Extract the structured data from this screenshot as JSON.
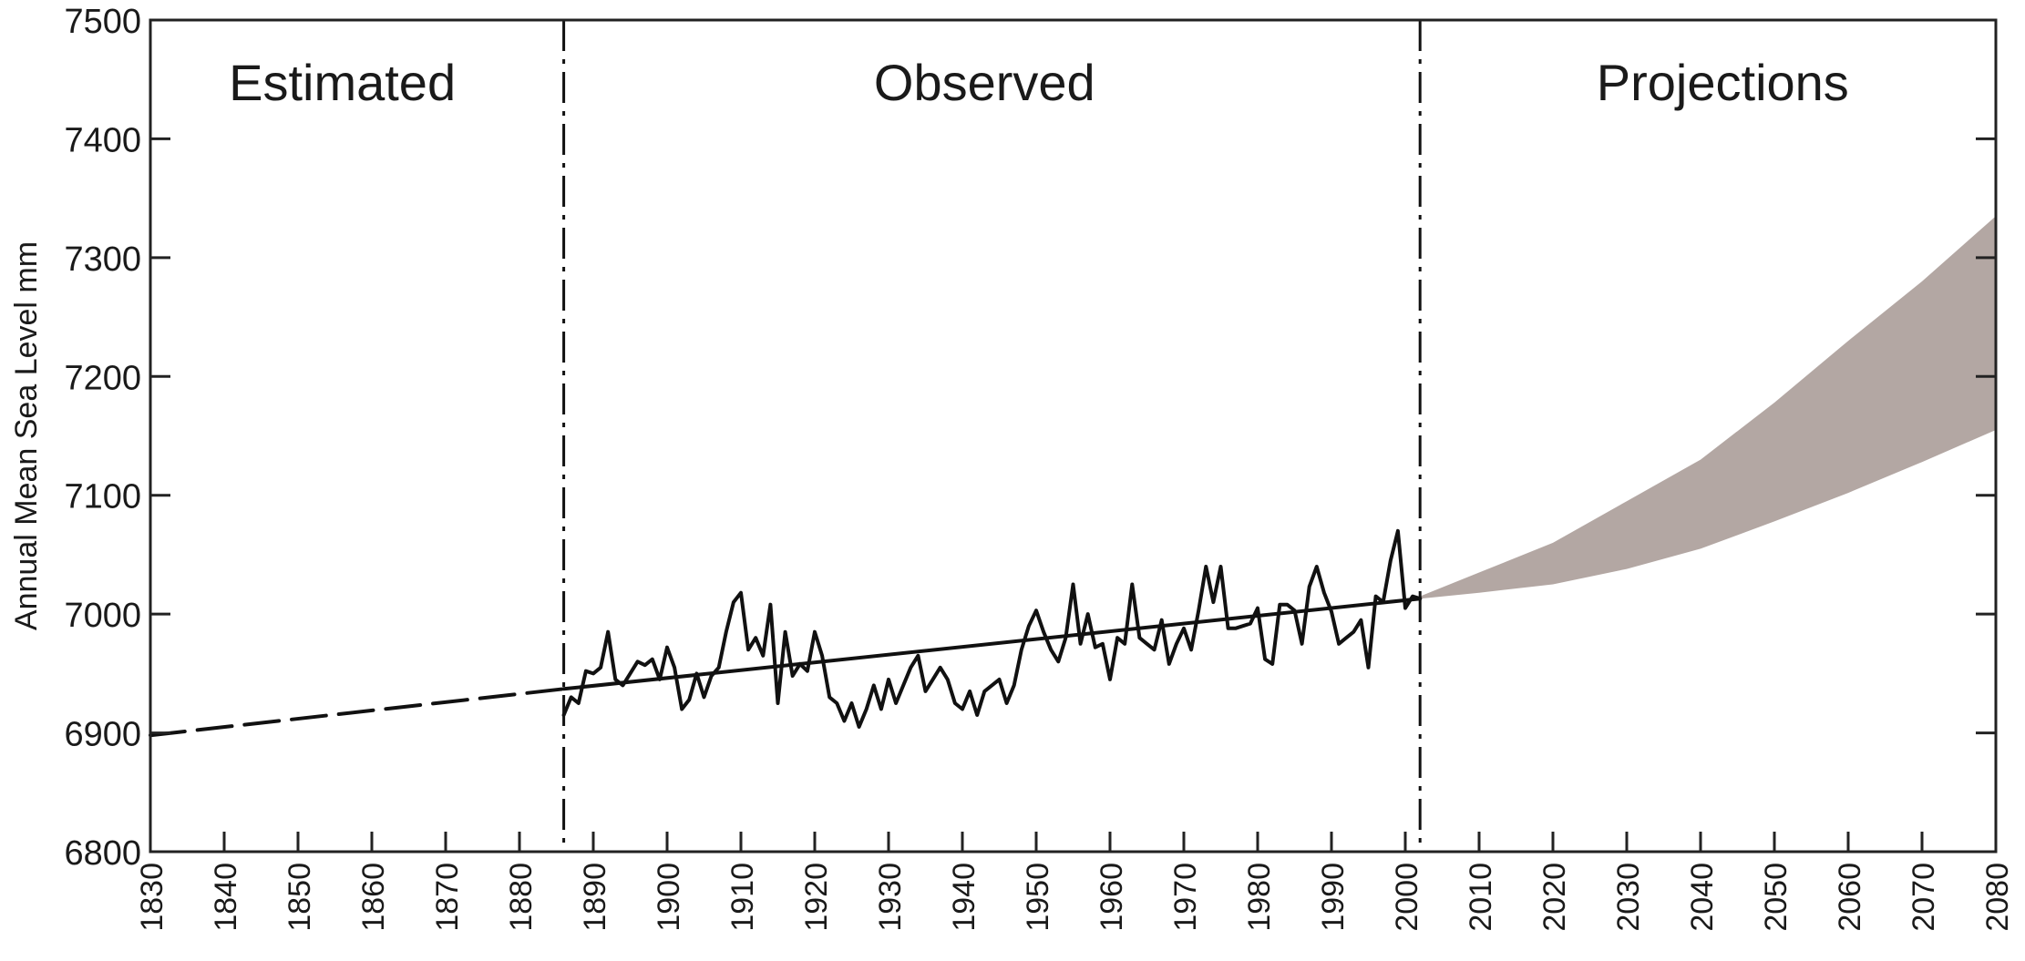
{
  "chart_data": {
    "type": "line",
    "ylabel": "Annual Mean Sea Level mm",
    "xlabel": "",
    "xlim": [
      1830,
      2080
    ],
    "ylim": [
      6800,
      7500
    ],
    "x_ticks": [
      1830,
      1840,
      1850,
      1860,
      1870,
      1880,
      1890,
      1900,
      1910,
      1920,
      1930,
      1940,
      1950,
      1960,
      1970,
      1980,
      1990,
      2000,
      2010,
      2020,
      2030,
      2040,
      2050,
      2060,
      2070,
      2080
    ],
    "y_ticks": [
      6800,
      6900,
      7000,
      7100,
      7200,
      7300,
      7400,
      7500
    ],
    "grid": false,
    "period_labels": [
      {
        "label": "Estimated",
        "x": 1856
      },
      {
        "label": "Observed",
        "x": 1943
      },
      {
        "label": "Projections",
        "x": 2043
      }
    ],
    "dividers": [
      1886,
      2002
    ],
    "colors": {
      "line": "#111111",
      "band": "#b3a7a3",
      "frame": "#222222"
    },
    "series": [
      {
        "style": "dashed",
        "x": [
          1830,
          1886
        ],
        "y": [
          6898,
          6937
        ]
      },
      {
        "style": "solid",
        "x": [
          1886,
          2002
        ],
        "y": [
          6937,
          7013
        ]
      },
      {
        "style": "solid",
        "x": [
          1886,
          1887,
          1888,
          1889,
          1890,
          1891,
          1892,
          1893,
          1894,
          1895,
          1896,
          1897,
          1898,
          1899,
          1900,
          1901,
          1902,
          1903,
          1904,
          1905,
          1906,
          1907,
          1908,
          1909,
          1910,
          1911,
          1912,
          1913,
          1914,
          1915,
          1916,
          1917,
          1918,
          1919,
          1920,
          1921,
          1922,
          1923,
          1924,
          1925,
          1926,
          1927,
          1928,
          1929,
          1930,
          1931,
          1932,
          1933,
          1934,
          1935,
          1936,
          1937,
          1938,
          1939,
          1940,
          1941,
          1942,
          1943,
          1944,
          1945,
          1946,
          1947,
          1948,
          1949,
          1950,
          1951,
          1952,
          1953,
          1954,
          1955,
          1956,
          1957,
          1958,
          1959,
          1960,
          1961,
          1962,
          1963,
          1964,
          1965,
          1966,
          1967,
          1968,
          1969,
          1970,
          1971,
          1972,
          1973,
          1974,
          1975,
          1976,
          1977,
          1978,
          1979,
          1980,
          1981,
          1982,
          1983,
          1984,
          1985,
          1986,
          1987,
          1988,
          1989,
          1990,
          1991,
          1992,
          1993,
          1994,
          1995,
          1996,
          1997,
          1998,
          1999,
          2000,
          2001,
          2002
        ],
        "y": [
          6915,
          6930,
          6925,
          6952,
          6950,
          6955,
          6985,
          6945,
          6940,
          6950,
          6960,
          6957,
          6962,
          6945,
          6972,
          6955,
          6920,
          6928,
          6950,
          6930,
          6948,
          6955,
          6985,
          7010,
          7018,
          6970,
          6980,
          6965,
          7008,
          6925,
          6985,
          6948,
          6958,
          6952,
          6985,
          6965,
          6930,
          6925,
          6910,
          6925,
          6905,
          6920,
          6940,
          6920,
          6945,
          6925,
          6940,
          6955,
          6965,
          6935,
          6945,
          6955,
          6945,
          6925,
          6920,
          6935,
          6915,
          6935,
          6940,
          6945,
          6925,
          6940,
          6970,
          6990,
          7003,
          6985,
          6970,
          6960,
          6980,
          7025,
          6975,
          7000,
          6972,
          6975,
          6945,
          6980,
          6975,
          7025,
          6980,
          6975,
          6970,
          6995,
          6958,
          6975,
          6988,
          6970,
          7003,
          7040,
          7010,
          7040,
          6988,
          6988,
          6990,
          6992,
          7005,
          6962,
          6958,
          7008,
          7008,
          7003,
          6975,
          7023,
          7040,
          7018,
          7002,
          6975,
          6980,
          6985,
          6995,
          6955,
          7015,
          7010,
          7045,
          7070,
          7005,
          7015,
          7013
        ]
      }
    ],
    "band": {
      "x": [
        2002,
        2010,
        2020,
        2030,
        2040,
        2050,
        2060,
        2070,
        2080
      ],
      "lower": [
        7013,
        7018,
        7025,
        7038,
        7055,
        7078,
        7102,
        7128,
        7155
      ],
      "upper": [
        7015,
        7035,
        7060,
        7095,
        7130,
        7178,
        7230,
        7280,
        7335
      ]
    }
  }
}
